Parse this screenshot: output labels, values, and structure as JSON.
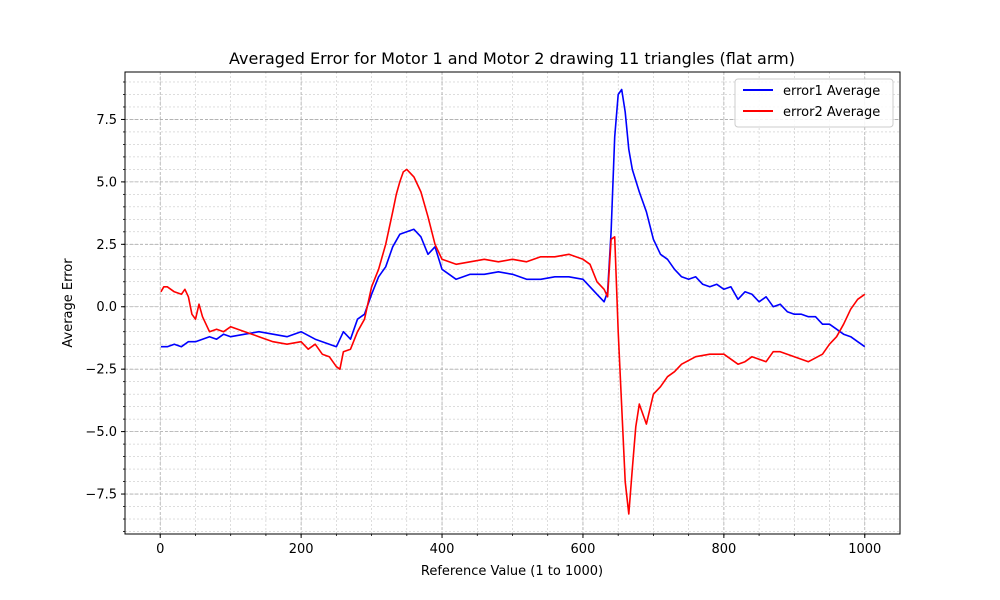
{
  "chart_data": {
    "type": "line",
    "title": "Averaged Error for Motor 1 and Motor 2 drawing 11 triangles (flat arm)",
    "xlabel": "Reference Value (1 to 1000)",
    "ylabel": "Average Error",
    "xlim": [
      -50,
      1050
    ],
    "ylim": [
      -9.1,
      9.4
    ],
    "xticks": [
      0,
      200,
      400,
      600,
      800,
      1000
    ],
    "xtick_labels": [
      "0",
      "200",
      "400",
      "600",
      "800",
      "1000"
    ],
    "yticks": [
      -7.5,
      -5.0,
      -2.5,
      0.0,
      2.5,
      5.0,
      7.5
    ],
    "ytick_labels": [
      "−7.5",
      "−5.0",
      "−2.5",
      "0.0",
      "2.5",
      "5.0",
      "7.5"
    ],
    "grid": true,
    "minor_grid": true,
    "legend_position": "top-right",
    "series": [
      {
        "name": "error1 Average",
        "color": "#0000ff",
        "x": [
          1,
          10,
          20,
          30,
          40,
          50,
          60,
          70,
          80,
          90,
          100,
          120,
          140,
          160,
          180,
          200,
          220,
          240,
          250,
          260,
          270,
          280,
          290,
          300,
          310,
          320,
          330,
          340,
          350,
          360,
          370,
          380,
          390,
          400,
          410,
          420,
          430,
          440,
          450,
          460,
          480,
          500,
          520,
          540,
          560,
          580,
          600,
          610,
          620,
          630,
          635,
          640,
          645,
          650,
          655,
          660,
          665,
          670,
          680,
          690,
          700,
          710,
          720,
          730,
          740,
          750,
          760,
          770,
          780,
          790,
          800,
          810,
          820,
          830,
          840,
          850,
          860,
          870,
          880,
          890,
          900,
          910,
          920,
          930,
          940,
          950,
          960,
          970,
          980,
          990,
          1000
        ],
        "y": [
          -1.6,
          -1.6,
          -1.5,
          -1.6,
          -1.4,
          -1.4,
          -1.3,
          -1.2,
          -1.3,
          -1.1,
          -1.2,
          -1.1,
          -1.0,
          -1.1,
          -1.2,
          -1.0,
          -1.3,
          -1.5,
          -1.6,
          -1.0,
          -1.3,
          -0.5,
          -0.3,
          0.5,
          1.2,
          1.6,
          2.4,
          2.9,
          3.0,
          3.1,
          2.8,
          2.1,
          2.4,
          1.5,
          1.3,
          1.1,
          1.2,
          1.3,
          1.3,
          1.3,
          1.4,
          1.3,
          1.1,
          1.1,
          1.2,
          1.2,
          1.1,
          0.8,
          0.5,
          0.2,
          0.6,
          3.0,
          6.8,
          8.5,
          8.7,
          7.8,
          6.3,
          5.5,
          4.6,
          3.8,
          2.7,
          2.1,
          1.9,
          1.5,
          1.2,
          1.1,
          1.2,
          0.9,
          0.8,
          0.9,
          0.7,
          0.8,
          0.3,
          0.6,
          0.5,
          0.2,
          0.4,
          0.0,
          0.1,
          -0.2,
          -0.3,
          -0.3,
          -0.4,
          -0.4,
          -0.7,
          -0.7,
          -0.9,
          -1.1,
          -1.2,
          -1.4,
          -1.6
        ]
      },
      {
        "name": "error2 Average",
        "color": "#ff0000",
        "x": [
          1,
          5,
          10,
          20,
          30,
          35,
          40,
          45,
          50,
          55,
          60,
          70,
          80,
          90,
          100,
          110,
          120,
          140,
          160,
          180,
          200,
          210,
          220,
          230,
          240,
          250,
          255,
          260,
          270,
          280,
          290,
          300,
          310,
          320,
          330,
          335,
          340,
          345,
          350,
          360,
          370,
          380,
          390,
          400,
          410,
          420,
          440,
          460,
          480,
          500,
          520,
          540,
          560,
          580,
          600,
          610,
          620,
          630,
          635,
          640,
          645,
          650,
          655,
          660,
          665,
          670,
          675,
          680,
          690,
          700,
          710,
          720,
          730,
          740,
          760,
          780,
          800,
          820,
          830,
          840,
          850,
          860,
          870,
          880,
          900,
          920,
          940,
          950,
          960,
          970,
          980,
          990,
          1000
        ],
        "y": [
          0.6,
          0.8,
          0.8,
          0.6,
          0.5,
          0.7,
          0.4,
          -0.3,
          -0.5,
          0.1,
          -0.4,
          -1.0,
          -0.9,
          -1.0,
          -0.8,
          -0.9,
          -1.0,
          -1.2,
          -1.4,
          -1.5,
          -1.4,
          -1.7,
          -1.5,
          -1.9,
          -2.0,
          -2.4,
          -2.5,
          -1.8,
          -1.7,
          -1.0,
          -0.5,
          0.8,
          1.5,
          2.5,
          3.8,
          4.5,
          5.0,
          5.4,
          5.5,
          5.2,
          4.6,
          3.6,
          2.5,
          1.9,
          1.8,
          1.7,
          1.8,
          1.9,
          1.8,
          1.9,
          1.8,
          2.0,
          2.0,
          2.1,
          1.9,
          1.7,
          1.0,
          0.7,
          0.4,
          2.7,
          2.8,
          -1.0,
          -4.0,
          -7.0,
          -8.3,
          -6.5,
          -4.8,
          -3.9,
          -4.7,
          -3.5,
          -3.2,
          -2.8,
          -2.6,
          -2.3,
          -2.0,
          -1.9,
          -1.9,
          -2.3,
          -2.2,
          -2.0,
          -2.1,
          -2.2,
          -1.8,
          -1.8,
          -2.0,
          -2.2,
          -1.9,
          -1.5,
          -1.2,
          -0.7,
          -0.1,
          0.3,
          0.5
        ]
      }
    ]
  }
}
